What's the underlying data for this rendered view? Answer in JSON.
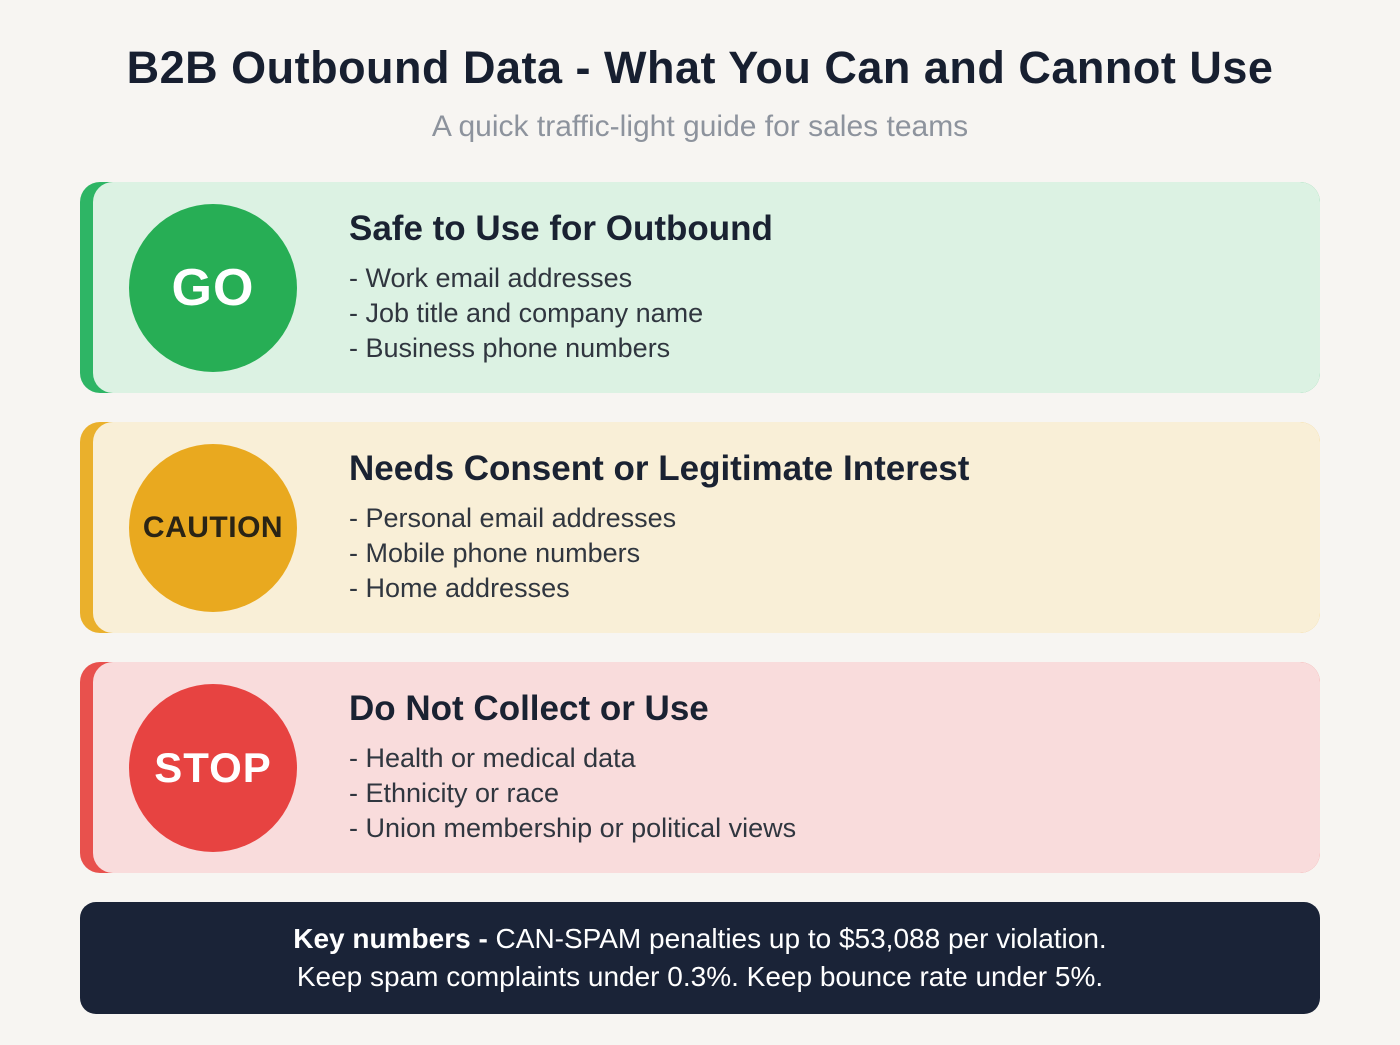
{
  "page": {
    "title": "B2B Outbound Data - What You Can and Cannot Use",
    "subtitle": "A quick traffic-light guide for sales teams"
  },
  "cards": [
    {
      "badge": "GO",
      "heading": "Safe to Use for Outbound",
      "items": [
        "- Work email addresses",
        "- Job title and company name",
        "- Business phone numbers"
      ],
      "colors": {
        "bg": "#dcf2e3",
        "accent": "#2eb565",
        "badge_bg": "#27ae55",
        "badge_text": "#ffffff"
      }
    },
    {
      "badge": "CAUTION",
      "heading": "Needs Consent or Legitimate Interest",
      "items": [
        "- Personal email addresses",
        "- Mobile phone numbers",
        "- Home addresses"
      ],
      "colors": {
        "bg": "#f9efd7",
        "accent": "#eab02c",
        "badge_bg": "#e9a91f",
        "badge_text": "#2a2415"
      }
    },
    {
      "badge": "STOP",
      "heading": "Do Not Collect or Use",
      "items": [
        "- Health or medical data",
        "- Ethnicity or race",
        "- Union membership or political views"
      ],
      "colors": {
        "bg": "#f9dcdc",
        "accent": "#e8514d",
        "badge_bg": "#e74341",
        "badge_text": "#ffffff"
      }
    }
  ],
  "footer": {
    "label": "Key numbers -",
    "line1_rest": " CAN-SPAM penalties up to $53,088 per violation.",
    "line2": "Keep spam complaints under 0.3%. Keep bounce rate under 5%.",
    "colors": {
      "bg": "#1a2337",
      "text": "#ffffff"
    }
  }
}
